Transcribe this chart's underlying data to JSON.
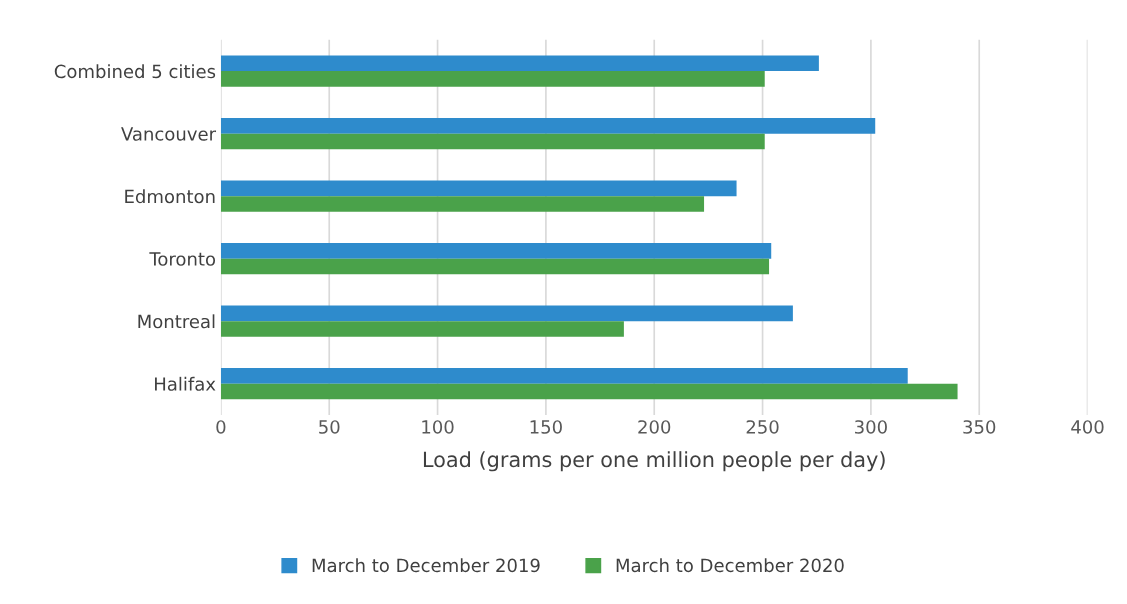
{
  "chart_data": {
    "type": "bar",
    "orientation": "horizontal",
    "xlabel": "Load (grams per one million people per day)",
    "categories": [
      "Combined 5 cities",
      "Vancouver",
      "Edmonton",
      "Toronto",
      "Montreal",
      "Halifax"
    ],
    "series": [
      {
        "name": "March to December 2019",
        "color": "#2e8bcc",
        "values": [
          276,
          302,
          238,
          254,
          264,
          317
        ]
      },
      {
        "name": "March to December 2020",
        "color": "#4aa24a",
        "values": [
          251,
          251,
          223,
          253,
          186,
          340
        ]
      }
    ],
    "xlim": [
      0,
      400
    ],
    "xticks": [
      0,
      50,
      100,
      150,
      200,
      250,
      300,
      350,
      400
    ],
    "grid": "x",
    "legend": "bottom"
  }
}
